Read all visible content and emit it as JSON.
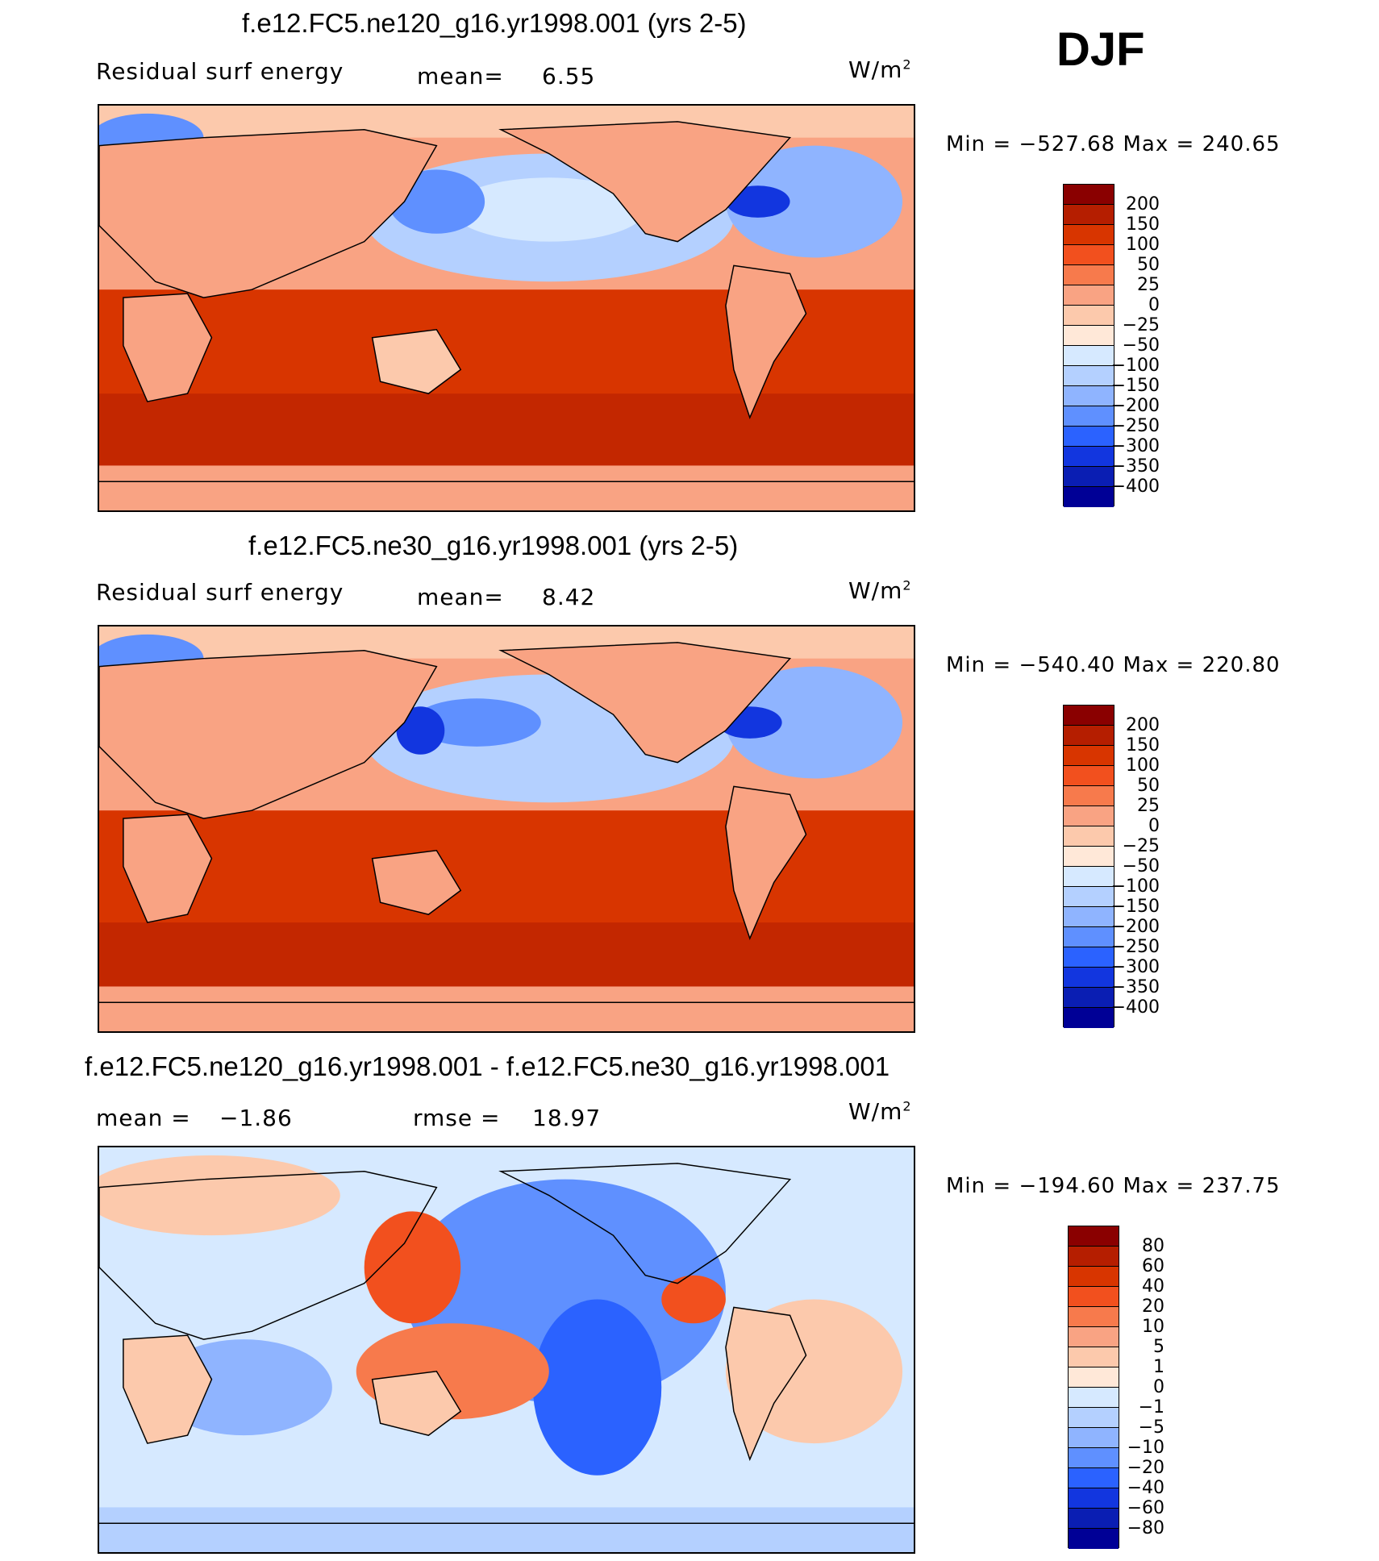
{
  "season": "DJF",
  "panels": [
    {
      "title": "f.e12.FC5.ne120_g16.yr1998.001 (yrs 2-5)",
      "variable": "Residual surf energy",
      "mean_label": "mean=",
      "mean_value": "6.55",
      "units": "W/m",
      "units_exp": "2",
      "min_label": "Min",
      "min_value": "−527.68",
      "max_label": "Max",
      "max_value": "240.65"
    },
    {
      "title": "f.e12.FC5.ne30_g16.yr1998.001 (yrs 2-5)",
      "variable": "Residual surf energy",
      "mean_label": "mean=",
      "mean_value": "8.42",
      "units": "W/m",
      "units_exp": "2",
      "min_label": "Min",
      "min_value": "−540.40",
      "max_label": "Max",
      "max_value": "220.80"
    },
    {
      "title": "f.e12.FC5.ne120_g16.yr1998.001 - f.e12.FC5.ne30_g16.yr1998.001",
      "mean_label": "mean =",
      "mean_value": "−1.86",
      "rmse_label": "rmse =",
      "rmse_value": "18.97",
      "units": "W/m",
      "units_exp": "2",
      "min_label": "Min",
      "min_value": "−194.60",
      "max_label": "Max",
      "max_value": "237.75"
    }
  ],
  "colorbar_main": {
    "labels": [
      "200",
      "150",
      "100",
      "50",
      "25",
      "0",
      "−25",
      "−50",
      "−100",
      "−150",
      "−200",
      "−250",
      "−300",
      "−350",
      "−400"
    ],
    "colors": [
      "#8a0000",
      "#b51e00",
      "#d83500",
      "#f2501e",
      "#f77a4c",
      "#f9a383",
      "#fcc9ac",
      "#ffe8d8",
      "#d6e9ff",
      "#b4d0ff",
      "#8fb4ff",
      "#5f90ff",
      "#2b62ff",
      "#1236df",
      "#0a1eb3",
      "#000096"
    ]
  },
  "colorbar_diff": {
    "labels": [
      "80",
      "60",
      "40",
      "20",
      "10",
      "5",
      "1",
      "0",
      "−1",
      "−5",
      "−10",
      "−20",
      "−40",
      "−60",
      "−80"
    ],
    "colors": [
      "#8a0000",
      "#b51e00",
      "#d83500",
      "#f2501e",
      "#f77a4c",
      "#f9a383",
      "#fcc9ac",
      "#ffe8d8",
      "#d6e9ff",
      "#b4d0ff",
      "#8fb4ff",
      "#5f90ff",
      "#2b62ff",
      "#1236df",
      "#0a1eb3",
      "#000096"
    ]
  }
}
